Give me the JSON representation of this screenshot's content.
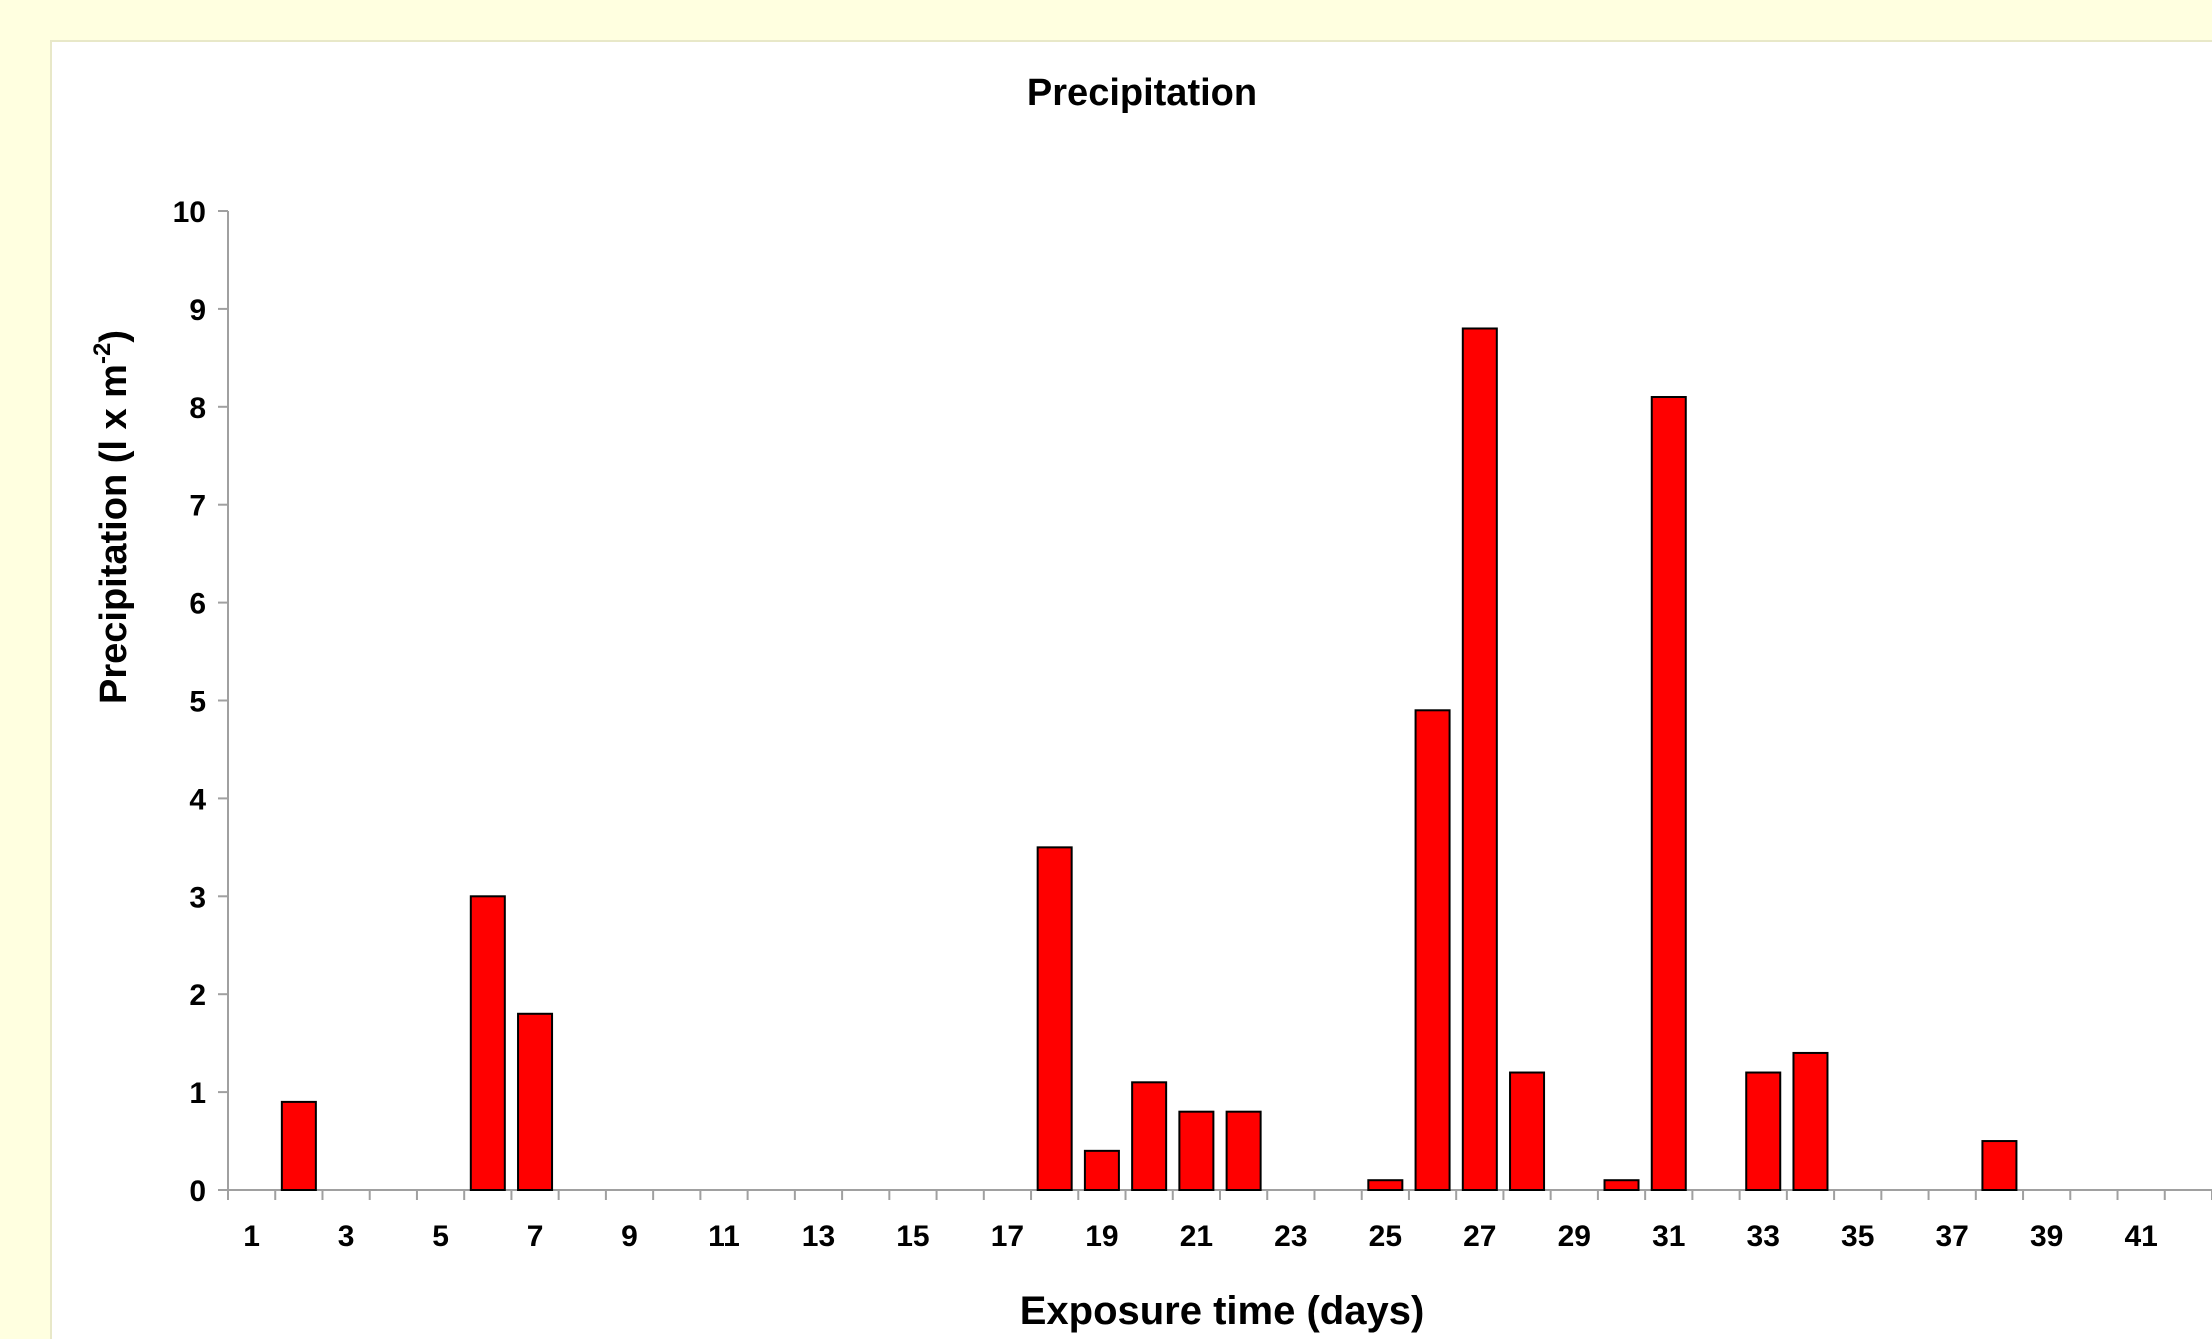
{
  "chart_data": {
    "type": "bar",
    "title": "Precipitation",
    "xlabel": "Exposure time (days)",
    "ylabel": {
      "main": "Precipitation (l x m",
      "superscript": "-2",
      "close": ")"
    },
    "ylim": [
      0,
      10
    ],
    "yticks": [
      0,
      1,
      2,
      3,
      4,
      5,
      6,
      7,
      8,
      9,
      10
    ],
    "x_range": [
      1,
      42
    ],
    "xtick_labels": [
      "1",
      "3",
      "5",
      "7",
      "9",
      "11",
      "13",
      "15",
      "17",
      "19",
      "21",
      "23",
      "25",
      "27",
      "29",
      "31",
      "33",
      "35",
      "37",
      "39",
      "41"
    ],
    "grid": false,
    "legend": "none",
    "bar_color": "#ff0000",
    "x": [
      1,
      2,
      3,
      4,
      5,
      6,
      7,
      8,
      9,
      10,
      11,
      12,
      13,
      14,
      15,
      16,
      17,
      18,
      19,
      20,
      21,
      22,
      23,
      24,
      25,
      26,
      27,
      28,
      29,
      30,
      31,
      32,
      33,
      34,
      35,
      36,
      37,
      38,
      39,
      40,
      41,
      42
    ],
    "values": [
      0,
      0.9,
      0,
      0,
      0,
      3.0,
      1.8,
      0,
      0,
      0,
      0,
      0,
      0,
      0,
      0,
      0,
      0,
      3.5,
      0.4,
      1.1,
      0.8,
      0.8,
      0,
      0,
      0.1,
      4.9,
      8.8,
      1.2,
      0,
      0.1,
      8.1,
      0,
      1.2,
      1.4,
      0,
      0,
      0,
      0.5,
      0,
      0,
      0,
      0
    ]
  }
}
